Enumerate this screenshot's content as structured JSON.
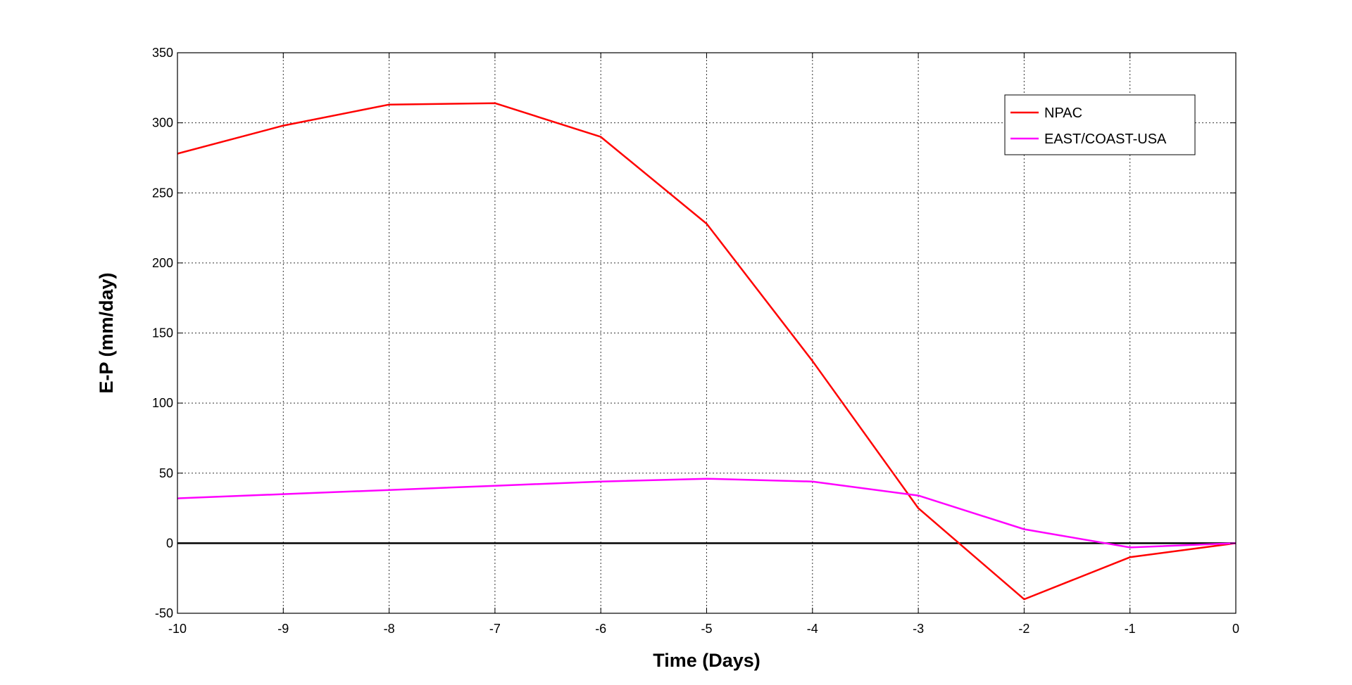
{
  "chart_data": {
    "type": "line",
    "title": "",
    "xlabel": "Time (Days)",
    "ylabel": "E-P (mm/day)",
    "xlim": [
      -10,
      0
    ],
    "ylim": [
      -50,
      350
    ],
    "xticks": [
      -10,
      -9,
      -8,
      -7,
      -6,
      -5,
      -4,
      -3,
      -2,
      -1,
      0
    ],
    "yticks": [
      -50,
      0,
      50,
      100,
      150,
      200,
      250,
      300,
      350
    ],
    "grid": true,
    "legend_position": "top-right",
    "zero_line": true,
    "x": [
      -10,
      -9,
      -8,
      -7,
      -6,
      -5,
      -4,
      -3,
      -2,
      -1,
      0
    ],
    "series": [
      {
        "name": "NPAC",
        "color": "#ff0000",
        "values": [
          278,
          298,
          313,
          314,
          290,
          228,
          130,
          25,
          -40,
          -10,
          0
        ]
      },
      {
        "name": "EAST/COAST-USA",
        "color": "#ff00ff",
        "values": [
          32,
          35,
          38,
          41,
          44,
          46,
          44,
          34,
          10,
          -3,
          0
        ]
      }
    ]
  }
}
